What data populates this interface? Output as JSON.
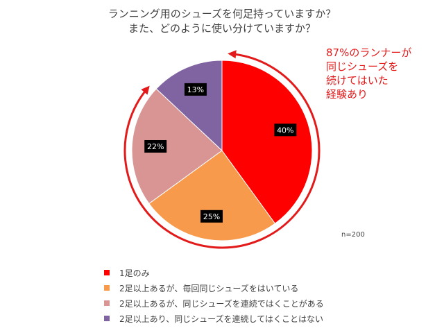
{
  "chart_data": {
    "type": "pie",
    "title_lines": [
      "ランニング用のシューズを何足持っていますか？",
      "また、どのように使い分けていますか？"
    ],
    "categories": [
      "1足のみ",
      "2足以上あるが、毎回同じシューズをはいている",
      "2足以上あるが、同じシューズを連続ではくことがある",
      "2足以上あり、同じシューズを連続してはくことはない"
    ],
    "values": [
      40,
      25,
      22,
      13
    ],
    "data_labels": [
      "40%",
      "25%",
      "22%",
      "13%"
    ],
    "colors": [
      "#ff0000",
      "#f79a4b",
      "#d99594",
      "#8064a2"
    ],
    "legend_position": "bottom",
    "annotation_lines": [
      "87%のランナーが",
      "同じシューズを",
      "続けてはいた",
      "経験あり"
    ],
    "annotation_color": "#e31a1a",
    "sample_size": "n=200"
  }
}
